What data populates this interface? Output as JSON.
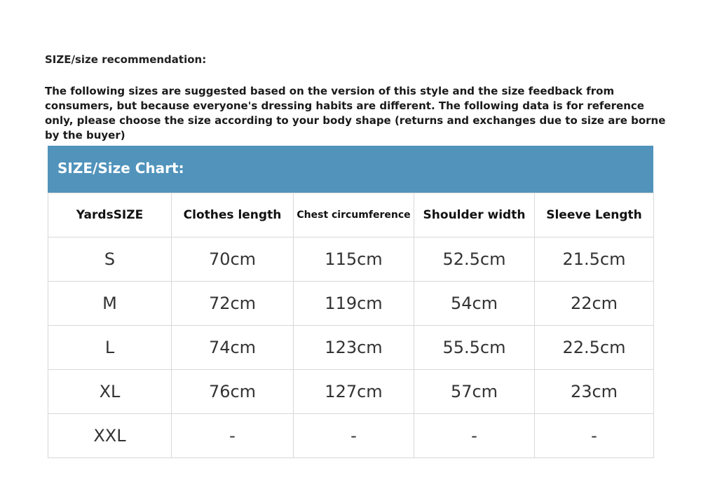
{
  "title": "SIZE/size recommendation:",
  "description": "The following sizes are suggested based on the version of this style and the size feedback from consumers, but because everyone's dressing habits are different. The following data is for reference only, please choose the size according to your body shape (returns and exchanges due to size are borne by the buyer)",
  "header_color": "#5193bb",
  "chart_title": "SIZE/Size Chart:",
  "columns": [
    "YardsSIZE",
    "Clothes length",
    "Chest circumference",
    "Shoulder width",
    "Sleeve Length"
  ],
  "rows": [
    [
      "S",
      "70cm",
      "115cm",
      "52.5cm",
      "21.5cm"
    ],
    [
      "M",
      "72cm",
      "119cm",
      "54cm",
      "22cm"
    ],
    [
      "L",
      "74cm",
      "123cm",
      "55.5cm",
      "22.5cm"
    ],
    [
      "XL",
      "76cm",
      "127cm",
      "57cm",
      "23cm"
    ],
    [
      "XXL",
      "-",
      "-",
      "-",
      "-"
    ]
  ]
}
